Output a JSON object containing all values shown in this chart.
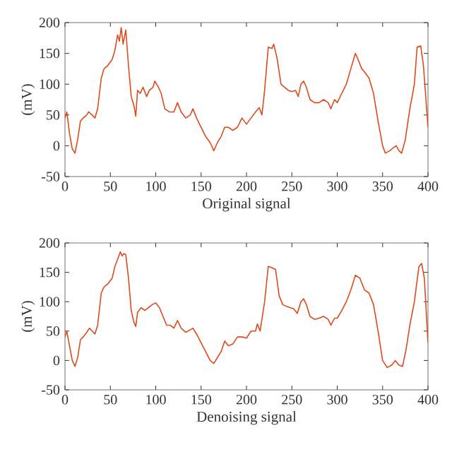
{
  "chart_data": [
    {
      "type": "line",
      "xlabel": "Original signal",
      "ylabel": "(mV)",
      "xlim": [
        0,
        400
      ],
      "ylim": [
        -50,
        200
      ],
      "xticks": [
        0,
        50,
        100,
        150,
        200,
        250,
        300,
        350,
        400
      ],
      "yticks": [
        -50,
        0,
        50,
        100,
        150,
        200
      ],
      "x": [
        0,
        2,
        5,
        8,
        11,
        14,
        17,
        20,
        24,
        26,
        30,
        33,
        36,
        40,
        43,
        47,
        52,
        55,
        58,
        60,
        62,
        64,
        67,
        70,
        73,
        76,
        78,
        80,
        83,
        86,
        90,
        93,
        97,
        99,
        103,
        106,
        110,
        115,
        120,
        124,
        128,
        133,
        138,
        141,
        145,
        150,
        155,
        160,
        164,
        168,
        172,
        176,
        180,
        185,
        190,
        195,
        200,
        205,
        210,
        214,
        217,
        220,
        224,
        228,
        230,
        234,
        238,
        242,
        246,
        250,
        254,
        257,
        260,
        263,
        266,
        270,
        275,
        280,
        285,
        290,
        293,
        297,
        300,
        305,
        310,
        315,
        320,
        323,
        327,
        330,
        335,
        340,
        345,
        350,
        353,
        358,
        362,
        365,
        368,
        371,
        375,
        380,
        385,
        388,
        392,
        395,
        400
      ],
      "series": [
        {
          "color": "#dd4a1c",
          "values": [
            45,
            55,
            20,
            -5,
            -12,
            10,
            40,
            45,
            50,
            55,
            50,
            45,
            60,
            110,
            125,
            130,
            140,
            155,
            180,
            170,
            192,
            165,
            188,
            130,
            80,
            65,
            48,
            90,
            85,
            95,
            80,
            90,
            95,
            105,
            95,
            85,
            60,
            55,
            55,
            70,
            55,
            45,
            50,
            60,
            45,
            30,
            15,
            5,
            -8,
            5,
            15,
            30,
            30,
            25,
            30,
            45,
            35,
            45,
            55,
            62,
            50,
            90,
            160,
            158,
            165,
            140,
            100,
            95,
            90,
            88,
            90,
            80,
            100,
            105,
            95,
            75,
            70,
            70,
            75,
            70,
            60,
            75,
            70,
            85,
            100,
            125,
            150,
            140,
            125,
            120,
            110,
            85,
            40,
            0,
            -12,
            -8,
            -3,
            0,
            -8,
            -12,
            10,
            60,
            100,
            160,
            162,
            130,
            30
          ]
        }
      ]
    },
    {
      "type": "line",
      "xlabel": "Denoising signal",
      "ylabel": "(mV)",
      "xlim": [
        0,
        400
      ],
      "ylim": [
        -50,
        200
      ],
      "xticks": [
        0,
        50,
        100,
        150,
        200,
        250,
        300,
        350,
        400
      ],
      "yticks": [
        -50,
        0,
        50,
        100,
        150,
        200
      ],
      "x": [
        0,
        2,
        5,
        8,
        11,
        14,
        17,
        20,
        24,
        27,
        30,
        33,
        36,
        40,
        43,
        47,
        52,
        55,
        58,
        61,
        63,
        65,
        67,
        70,
        73,
        76,
        78,
        80,
        84,
        88,
        92,
        96,
        100,
        104,
        108,
        112,
        116,
        120,
        124,
        128,
        133,
        138,
        141,
        145,
        150,
        155,
        160,
        164,
        168,
        172,
        176,
        180,
        185,
        190,
        195,
        200,
        205,
        210,
        212,
        215,
        220,
        224,
        228,
        232,
        236,
        240,
        244,
        248,
        252,
        256,
        260,
        263,
        266,
        270,
        275,
        280,
        285,
        290,
        293,
        297,
        300,
        305,
        310,
        315,
        320,
        325,
        330,
        335,
        340,
        345,
        350,
        355,
        360,
        364,
        368,
        372,
        376,
        380,
        385,
        390,
        393,
        396,
        400
      ],
      "series": [
        {
          "color": "#dd4a1c",
          "values": [
            40,
            50,
            25,
            0,
            -10,
            5,
            35,
            40,
            48,
            55,
            50,
            45,
            60,
            115,
            125,
            130,
            140,
            160,
            172,
            185,
            178,
            182,
            180,
            140,
            85,
            65,
            58,
            82,
            90,
            85,
            90,
            95,
            98,
            90,
            75,
            60,
            60,
            55,
            68,
            55,
            48,
            52,
            55,
            45,
            30,
            15,
            0,
            -5,
            5,
            15,
            33,
            25,
            28,
            40,
            40,
            38,
            50,
            50,
            62,
            50,
            100,
            160,
            158,
            155,
            110,
            95,
            92,
            90,
            88,
            80,
            100,
            105,
            95,
            75,
            70,
            72,
            75,
            70,
            60,
            72,
            72,
            85,
            100,
            120,
            145,
            140,
            120,
            115,
            95,
            50,
            0,
            -12,
            -8,
            0,
            -8,
            -10,
            20,
            60,
            100,
            160,
            165,
            140,
            30
          ]
        }
      ]
    }
  ]
}
